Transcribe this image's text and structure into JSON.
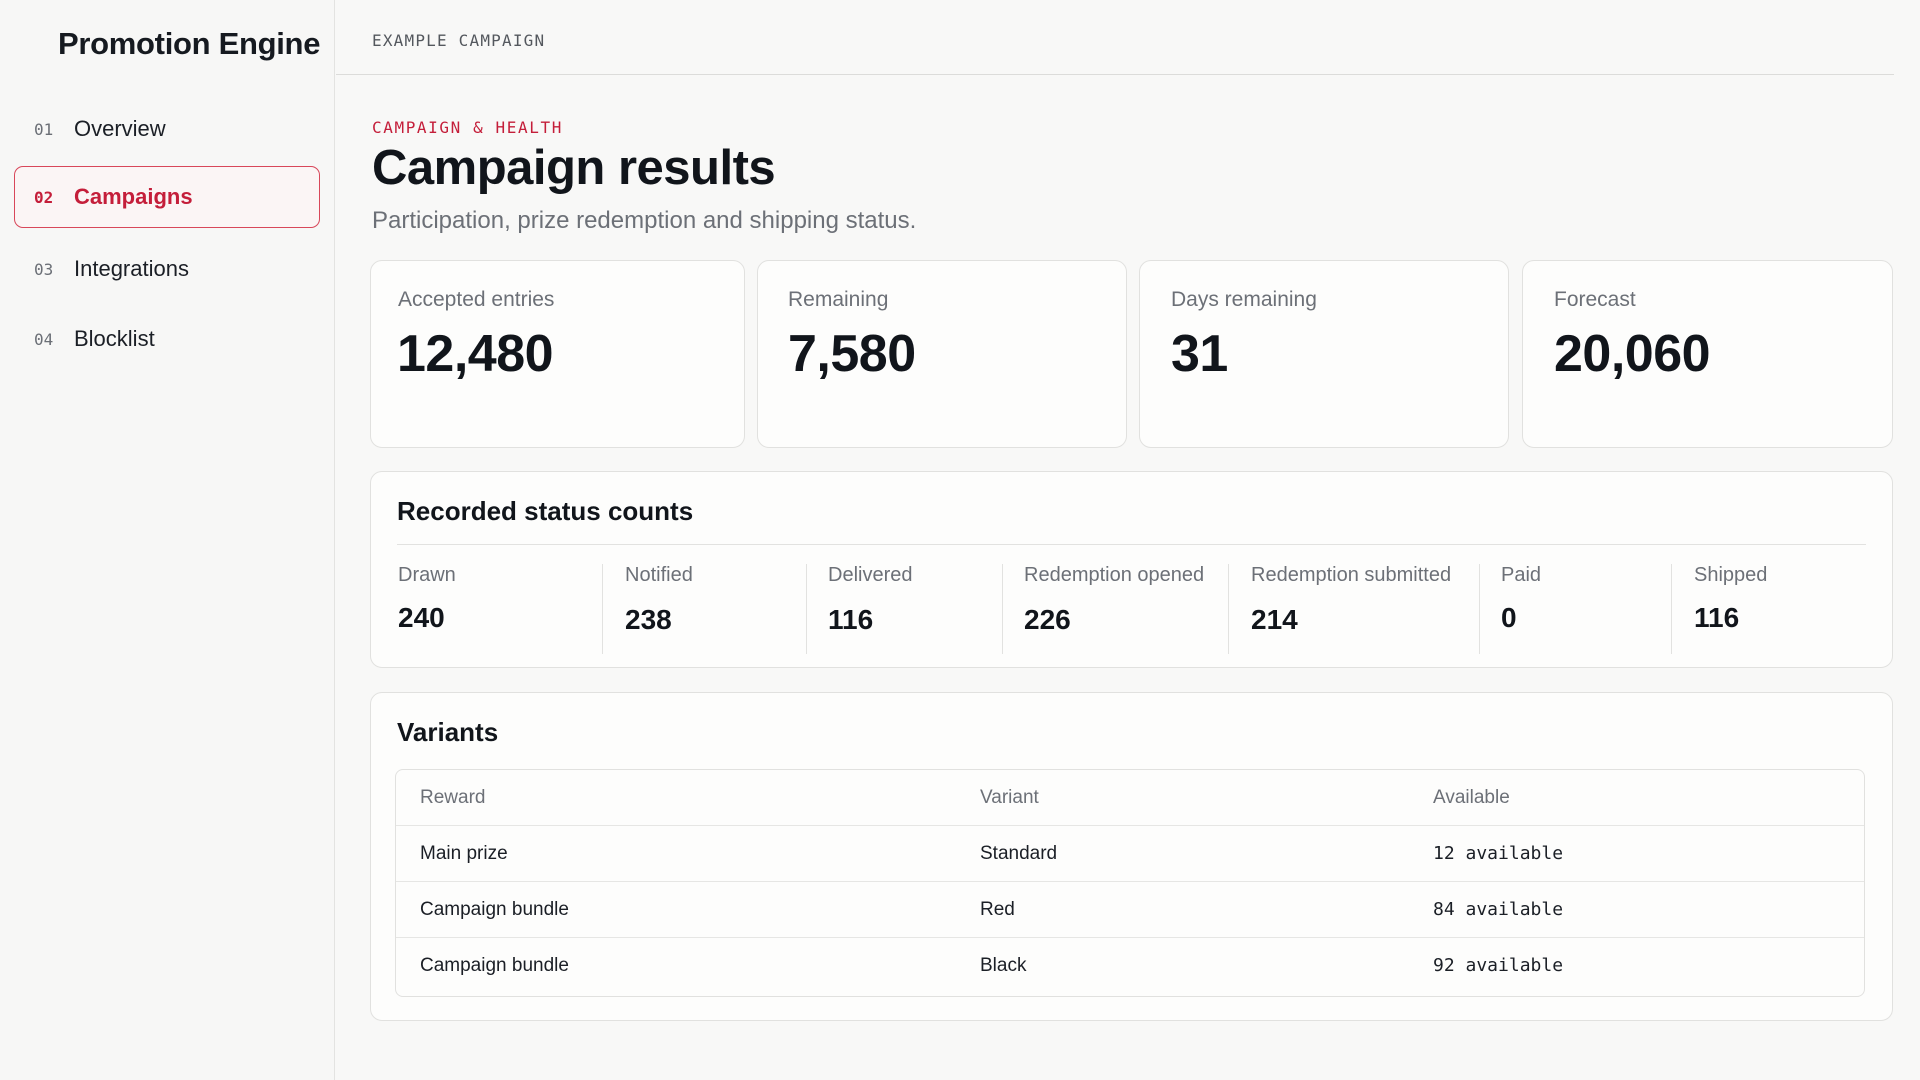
{
  "app": {
    "brand": "Promotion Engine"
  },
  "sidebar": {
    "items": [
      {
        "num": "01",
        "label": "Overview",
        "active": false
      },
      {
        "num": "02",
        "label": "Campaigns",
        "active": true
      },
      {
        "num": "03",
        "label": "Integrations",
        "active": false
      },
      {
        "num": "04",
        "label": "Blocklist",
        "active": false
      }
    ]
  },
  "header": {
    "breadcrumb": "EXAMPLE CAMPAIGN"
  },
  "page": {
    "eyebrow": "CAMPAIGN & HEALTH",
    "title": "Campaign results",
    "subtitle": "Participation, prize redemption and shipping status."
  },
  "kpis": [
    {
      "label": "Accepted entries",
      "value": "12,480"
    },
    {
      "label": "Remaining",
      "value": "7,580"
    },
    {
      "label": "Days remaining",
      "value": "31"
    },
    {
      "label": "Forecast",
      "value": "20,060"
    }
  ],
  "status_counts": {
    "title": "Recorded status counts",
    "items": [
      {
        "label": "Drawn",
        "value": "240"
      },
      {
        "label": "Notified",
        "value": "238"
      },
      {
        "label": "Delivered",
        "value": "116"
      },
      {
        "label": "Redemption opened",
        "value": "226"
      },
      {
        "label": "Redemption submitted",
        "value": "214"
      },
      {
        "label": "Paid",
        "value": "0"
      },
      {
        "label": "Shipped",
        "value": "116"
      }
    ]
  },
  "variants": {
    "title": "Variants",
    "columns": [
      "Reward",
      "Variant",
      "Available"
    ],
    "rows": [
      {
        "reward": "Main prize",
        "variant": "Standard",
        "available": "12 available"
      },
      {
        "reward": "Campaign bundle",
        "variant": "Red",
        "available": "84 available"
      },
      {
        "reward": "Campaign bundle",
        "variant": "Black",
        "available": "92 available"
      }
    ]
  },
  "colors": {
    "accent": "#c41e3a",
    "text": "#11151b",
    "muted": "#6c7077",
    "border": "#e1e1df"
  }
}
